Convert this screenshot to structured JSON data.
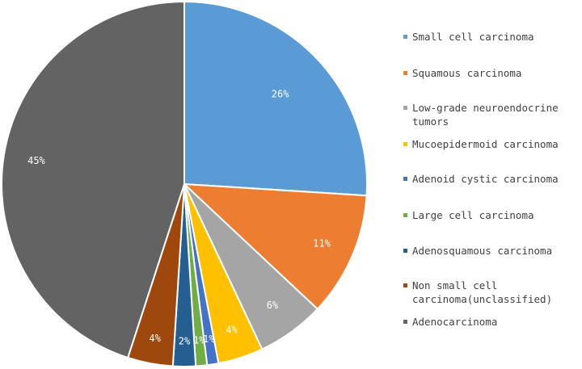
{
  "chart_data": {
    "type": "pie",
    "title": "",
    "start_angle_deg": 0,
    "direction": "clockwise",
    "slices": [
      {
        "label": "Small cell carcinoma",
        "value": 26,
        "value_label": "26%",
        "color": "#5b9bd5"
      },
      {
        "label": "Squamous carcinoma",
        "value": 11,
        "value_label": "11%",
        "color": "#ed7d31"
      },
      {
        "label": "Low-grade neuroendocrine\ntumors",
        "value": 6,
        "value_label": "6%",
        "color": "#a5a5a5"
      },
      {
        "label": "Mucoepidermoid carcinoma",
        "value": 4,
        "value_label": "4%",
        "color": "#ffc000"
      },
      {
        "label": "Adenoid cystic carcinoma",
        "value": 1,
        "value_label": "1%",
        "color": "#4472c4"
      },
      {
        "label": "Large cell carcinoma",
        "value": 1,
        "value_label": "1%",
        "color": "#70ad47"
      },
      {
        "label": "Adenosquamous carcinoma",
        "value": 2,
        "value_label": "2%",
        "color": "#255e91"
      },
      {
        "label": "Non small cell\ncarcinoma(unclassified)",
        "value": 4,
        "value_label": "4%",
        "color": "#9e480e"
      },
      {
        "label": "Adenocarcinoma",
        "value": 45,
        "value_label": "45%",
        "color": "#636363"
      }
    ],
    "legend_position": "right"
  }
}
